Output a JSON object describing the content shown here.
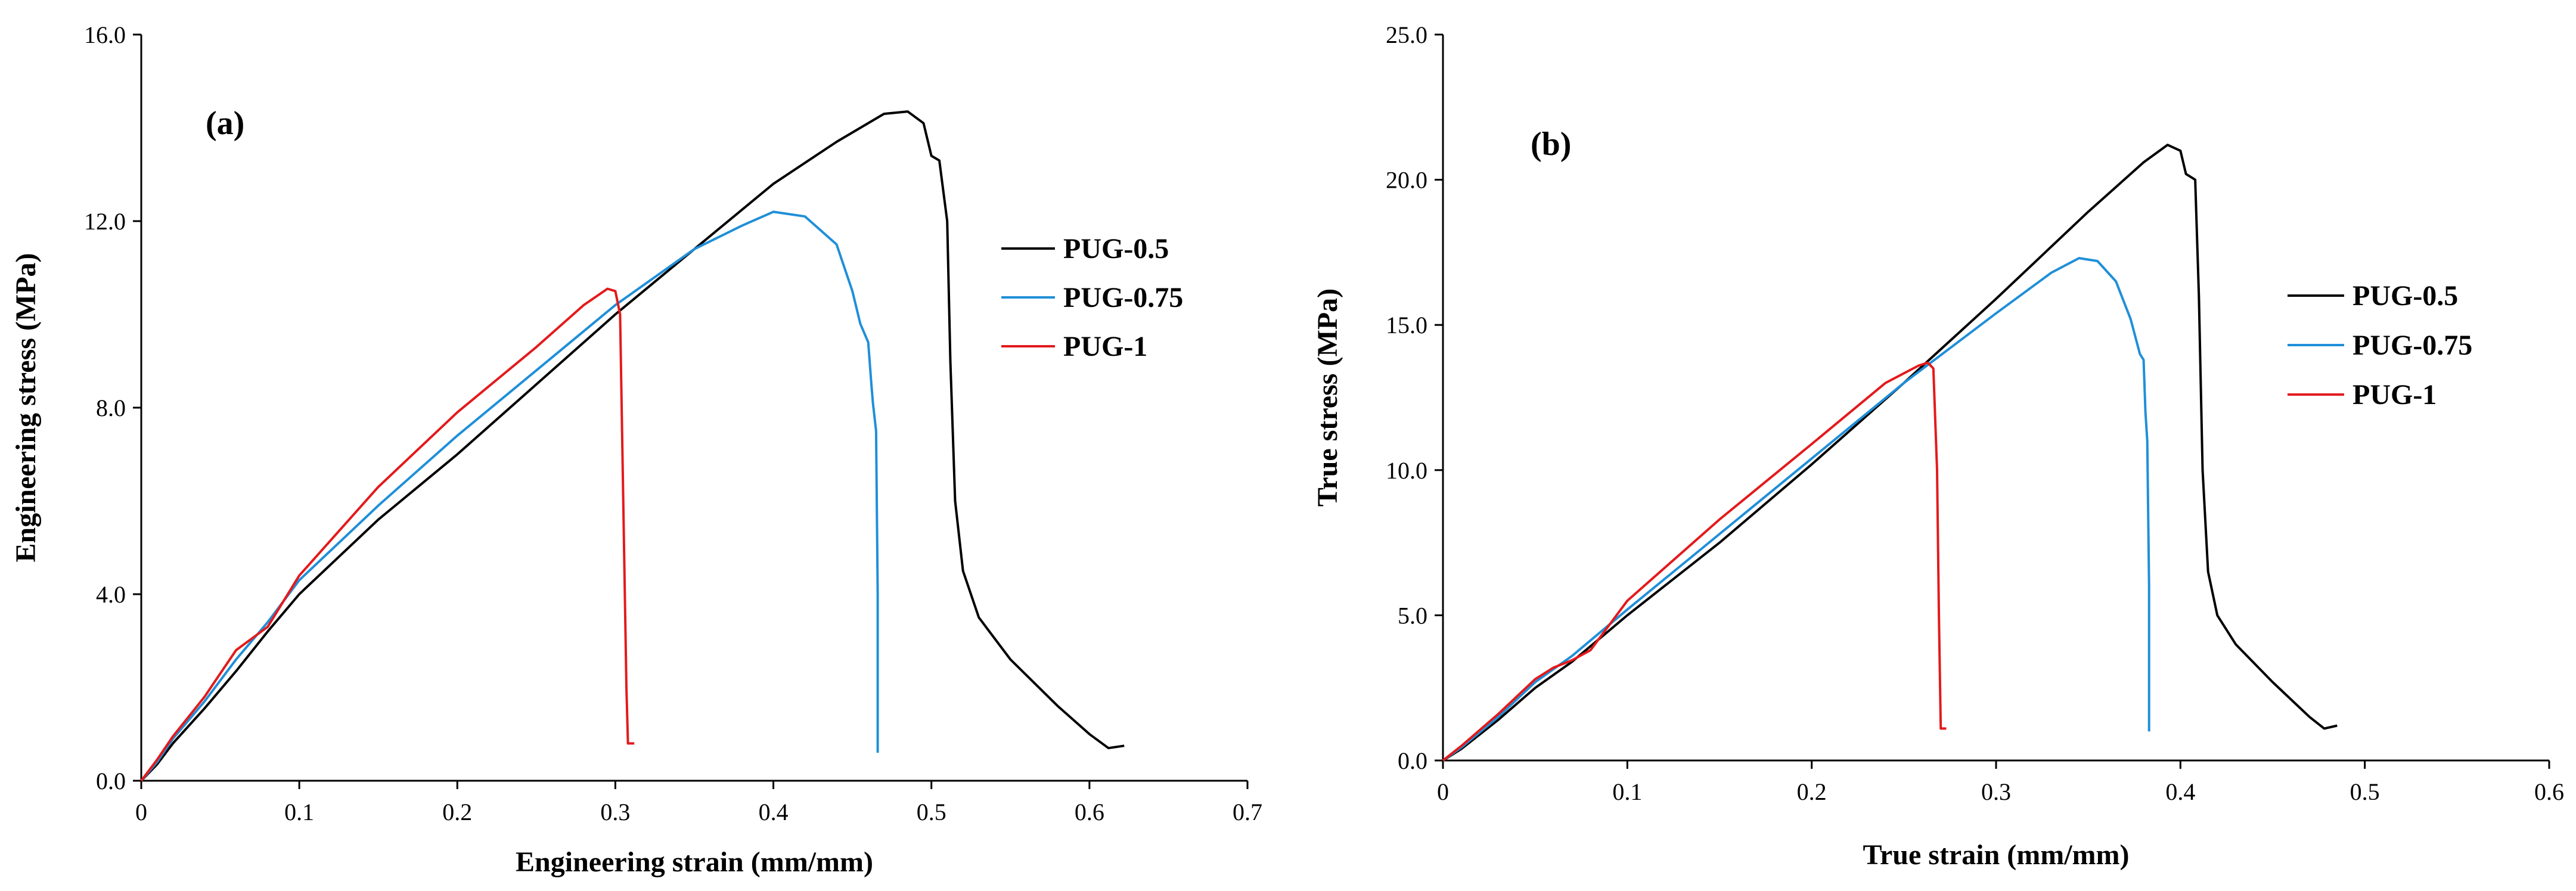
{
  "chart_data": [
    {
      "type": "line",
      "panel_label": "(a)",
      "xlabel": "Engineering strain (mm/mm)",
      "ylabel": "Engineering stress (MPa)",
      "xlim": [
        0,
        0.7
      ],
      "ylim": [
        0,
        16
      ],
      "xticks": [
        "0",
        "0.1",
        "0.2",
        "0.3",
        "0.4",
        "0.5",
        "0.6",
        "0.7"
      ],
      "yticks": [
        "0.0",
        "4.0",
        "8.0",
        "12.0",
        "16.0"
      ],
      "grid": false,
      "legend_position": "right",
      "series": [
        {
          "name": "PUG-0.5",
          "color": "#000000",
          "points": [
            [
              0,
              0
            ],
            [
              0.01,
              0.35
            ],
            [
              0.02,
              0.8
            ],
            [
              0.04,
              1.55
            ],
            [
              0.06,
              2.35
            ],
            [
              0.08,
              3.2
            ],
            [
              0.1,
              4.0
            ],
            [
              0.15,
              5.6
            ],
            [
              0.2,
              7.0
            ],
            [
              0.25,
              8.5
            ],
            [
              0.3,
              10.0
            ],
            [
              0.35,
              11.4
            ],
            [
              0.4,
              12.8
            ],
            [
              0.44,
              13.7
            ],
            [
              0.47,
              14.3
            ],
            [
              0.485,
              14.35
            ],
            [
              0.495,
              14.1
            ],
            [
              0.5,
              13.4
            ],
            [
              0.505,
              13.3
            ],
            [
              0.51,
              12.0
            ],
            [
              0.512,
              9.0
            ],
            [
              0.515,
              6.0
            ],
            [
              0.52,
              4.5
            ],
            [
              0.53,
              3.5
            ],
            [
              0.55,
              2.6
            ],
            [
              0.58,
              1.6
            ],
            [
              0.6,
              1.0
            ],
            [
              0.612,
              0.7
            ],
            [
              0.622,
              0.75
            ]
          ]
        },
        {
          "name": "PUG-0.75",
          "color": "#1f8fd8",
          "points": [
            [
              0,
              0
            ],
            [
              0.01,
              0.4
            ],
            [
              0.02,
              0.9
            ],
            [
              0.04,
              1.7
            ],
            [
              0.06,
              2.6
            ],
            [
              0.08,
              3.4
            ],
            [
              0.1,
              4.3
            ],
            [
              0.15,
              5.9
            ],
            [
              0.2,
              7.4
            ],
            [
              0.25,
              8.8
            ],
            [
              0.3,
              10.2
            ],
            [
              0.35,
              11.4
            ],
            [
              0.38,
              11.9
            ],
            [
              0.4,
              12.2
            ],
            [
              0.42,
              12.1
            ],
            [
              0.44,
              11.5
            ],
            [
              0.45,
              10.5
            ],
            [
              0.455,
              9.8
            ],
            [
              0.46,
              9.4
            ],
            [
              0.462,
              8.5
            ],
            [
              0.463,
              8.1
            ],
            [
              0.465,
              7.5
            ],
            [
              0.466,
              4.0
            ],
            [
              0.466,
              0.6
            ]
          ]
        },
        {
          "name": "PUG-1",
          "color": "#e31a1c",
          "points": [
            [
              0,
              0
            ],
            [
              0.01,
              0.45
            ],
            [
              0.02,
              0.95
            ],
            [
              0.04,
              1.8
            ],
            [
              0.06,
              2.8
            ],
            [
              0.07,
              3.05
            ],
            [
              0.08,
              3.3
            ],
            [
              0.1,
              4.4
            ],
            [
              0.15,
              6.3
            ],
            [
              0.2,
              7.9
            ],
            [
              0.25,
              9.3
            ],
            [
              0.28,
              10.2
            ],
            [
              0.295,
              10.55
            ],
            [
              0.3,
              10.5
            ],
            [
              0.303,
              10.0
            ],
            [
              0.305,
              6.0
            ],
            [
              0.307,
              2.0
            ],
            [
              0.308,
              0.8
            ],
            [
              0.312,
              0.8
            ]
          ]
        }
      ]
    },
    {
      "type": "line",
      "panel_label": "(b)",
      "xlabel": "True strain (mm/mm)",
      "ylabel": "True stress (MPa)",
      "xlim": [
        0,
        0.6
      ],
      "ylim": [
        0,
        25
      ],
      "xticks": [
        "0",
        "0.1",
        "0.2",
        "0.3",
        "0.4",
        "0.5",
        "0.6"
      ],
      "yticks": [
        "0.0",
        "5.0",
        "10.0",
        "15.0",
        "20.0",
        "25.0"
      ],
      "grid": false,
      "legend_position": "right",
      "series": [
        {
          "name": "PUG-0.5",
          "color": "#000000",
          "points": [
            [
              0,
              0
            ],
            [
              0.01,
              0.4
            ],
            [
              0.03,
              1.4
            ],
            [
              0.05,
              2.5
            ],
            [
              0.07,
              3.4
            ],
            [
              0.1,
              5.0
            ],
            [
              0.15,
              7.5
            ],
            [
              0.2,
              10.2
            ],
            [
              0.25,
              13.0
            ],
            [
              0.3,
              15.9
            ],
            [
              0.35,
              18.9
            ],
            [
              0.38,
              20.6
            ],
            [
              0.393,
              21.2
            ],
            [
              0.4,
              21.0
            ],
            [
              0.403,
              20.2
            ],
            [
              0.408,
              20.0
            ],
            [
              0.41,
              16.0
            ],
            [
              0.412,
              10.0
            ],
            [
              0.415,
              6.5
            ],
            [
              0.42,
              5.0
            ],
            [
              0.43,
              4.0
            ],
            [
              0.45,
              2.7
            ],
            [
              0.47,
              1.5
            ],
            [
              0.478,
              1.1
            ],
            [
              0.485,
              1.2
            ]
          ]
        },
        {
          "name": "PUG-0.75",
          "color": "#1f8fd8",
          "points": [
            [
              0,
              0
            ],
            [
              0.01,
              0.45
            ],
            [
              0.03,
              1.5
            ],
            [
              0.05,
              2.7
            ],
            [
              0.07,
              3.6
            ],
            [
              0.1,
              5.2
            ],
            [
              0.15,
              7.8
            ],
            [
              0.2,
              10.4
            ],
            [
              0.25,
              13.0
            ],
            [
              0.3,
              15.4
            ],
            [
              0.33,
              16.8
            ],
            [
              0.345,
              17.3
            ],
            [
              0.355,
              17.2
            ],
            [
              0.365,
              16.5
            ],
            [
              0.373,
              15.2
            ],
            [
              0.378,
              14.0
            ],
            [
              0.38,
              13.8
            ],
            [
              0.381,
              12.0
            ],
            [
              0.382,
              11.0
            ],
            [
              0.383,
              6.0
            ],
            [
              0.383,
              1.0
            ]
          ]
        },
        {
          "name": "PUG-1",
          "color": "#e31a1c",
          "points": [
            [
              0,
              0
            ],
            [
              0.01,
              0.5
            ],
            [
              0.03,
              1.6
            ],
            [
              0.05,
              2.8
            ],
            [
              0.06,
              3.2
            ],
            [
              0.07,
              3.45
            ],
            [
              0.08,
              3.8
            ],
            [
              0.1,
              5.5
            ],
            [
              0.15,
              8.3
            ],
            [
              0.2,
              10.9
            ],
            [
              0.24,
              13.0
            ],
            [
              0.258,
              13.6
            ],
            [
              0.263,
              13.7
            ],
            [
              0.266,
              13.5
            ],
            [
              0.268,
              10.0
            ],
            [
              0.269,
              5.0
            ],
            [
              0.27,
              1.1
            ],
            [
              0.273,
              1.1
            ]
          ]
        }
      ]
    }
  ]
}
